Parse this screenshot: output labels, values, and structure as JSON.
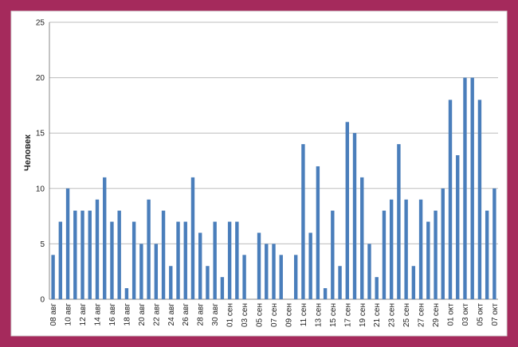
{
  "chart_data": {
    "type": "bar",
    "y_label": "Человек",
    "categories": [
      "08 авг",
      null,
      "10 авг",
      null,
      "12 авг",
      null,
      "14 авг",
      null,
      "16 авг",
      null,
      "18 авг",
      null,
      "20 авг",
      null,
      "22 авг",
      null,
      "24 авг",
      null,
      "26 авг",
      null,
      "28 авг",
      null,
      "30 авг",
      null,
      "01 сен",
      null,
      "03 сен",
      null,
      "05 сен",
      null,
      "07 сен",
      null,
      "09 сен",
      null,
      "11 сен",
      null,
      "13 сен",
      null,
      "15 сен",
      null,
      "17 сен",
      null,
      "19 сен",
      null,
      "21 сен",
      null,
      "23 сен",
      null,
      "25 сен",
      null,
      "27 сен",
      null,
      "29 сен",
      null,
      "01 окт",
      null,
      "03 окт",
      null,
      "05 окт",
      null,
      "07 окт"
    ],
    "values": [
      4,
      7,
      10,
      8,
      8,
      8,
      9,
      11,
      7,
      8,
      1,
      7,
      5,
      9,
      5,
      8,
      3,
      7,
      7,
      11,
      6,
      3,
      7,
      2,
      7,
      7,
      4,
      0,
      6,
      5,
      5,
      4,
      0,
      4,
      14,
      6,
      12,
      1,
      8,
      3,
      16,
      15,
      11,
      5,
      2,
      8,
      9,
      14,
      9,
      3,
      9,
      7,
      8,
      10,
      18,
      13,
      20,
      20,
      18,
      8,
      10
    ],
    "color": "#4a7ebb",
    "ylim": [
      0,
      25
    ],
    "yticks": [
      0,
      5,
      10,
      15,
      20,
      25
    ],
    "grid": true
  }
}
